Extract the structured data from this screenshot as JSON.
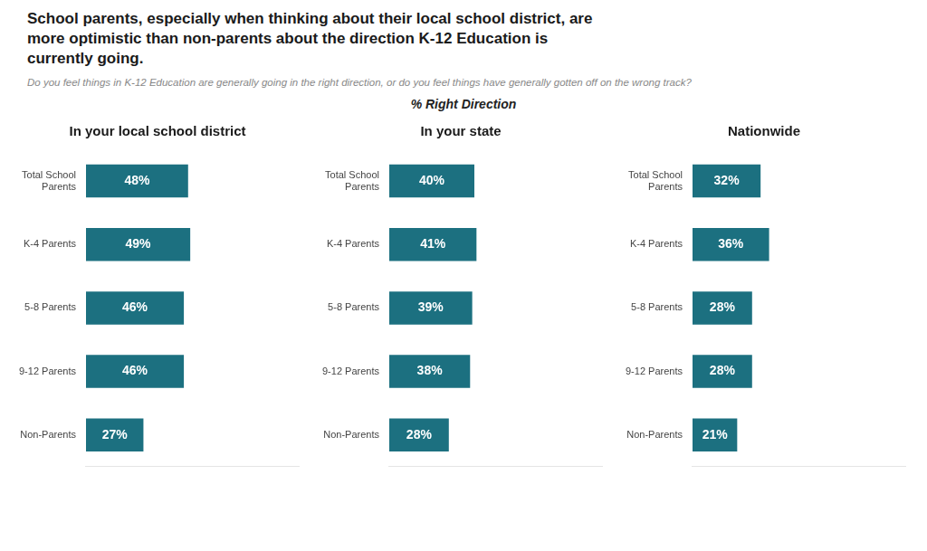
{
  "title": "School parents, especially when thinking about their local school district, are\nmore optimistic than non-parents about the direction K-12 Education is\ncurrently going.",
  "subtitle": "Do you feel things in K-12 Education are generally going in the right direction, or do you feel things have generally gotten off on the wrong track?",
  "annotations": [
    "% Right Direction"
  ],
  "chart_data": [
    {
      "type": "bar",
      "orientation": "horizontal",
      "title": "In your local school district",
      "categories": [
        "Total School\nParents",
        "K-4 Parents",
        "5-8 Parents",
        "9-12 Parents",
        "Non-Parents"
      ],
      "values": [
        48,
        49,
        46,
        46,
        27
      ],
      "value_labels": [
        "48%",
        "49%",
        "46%",
        "46%",
        "27%"
      ],
      "data_labels": true,
      "color": "#1c7080",
      "xlim": [
        0,
        100
      ],
      "grid": false,
      "tick_labels": "y"
    },
    {
      "type": "bar",
      "orientation": "horizontal",
      "title": "In your state",
      "categories": [
        "Total School\nParents",
        "K-4 Parents",
        "5-8 Parents",
        "9-12 Parents",
        "Non-Parents"
      ],
      "values": [
        40,
        41,
        39,
        38,
        28
      ],
      "value_labels": [
        "40%",
        "41%",
        "39%",
        "38%",
        "28%"
      ],
      "data_labels": true,
      "color": "#1c7080",
      "xlim": [
        0,
        100
      ],
      "grid": false,
      "tick_labels": "y"
    },
    {
      "type": "bar",
      "orientation": "horizontal",
      "title": "Nationwide",
      "categories": [
        "Total School\nParents",
        "K-4 Parents",
        "5-8 Parents",
        "9-12 Parents",
        "Non-Parents"
      ],
      "values": [
        32,
        36,
        28,
        28,
        21
      ],
      "value_labels": [
        "32%",
        "36%",
        "28%",
        "28%",
        "21%"
      ],
      "data_labels": true,
      "color": "#1c7080",
      "xlim": [
        0,
        100
      ],
      "grid": false,
      "tick_labels": "y"
    }
  ]
}
